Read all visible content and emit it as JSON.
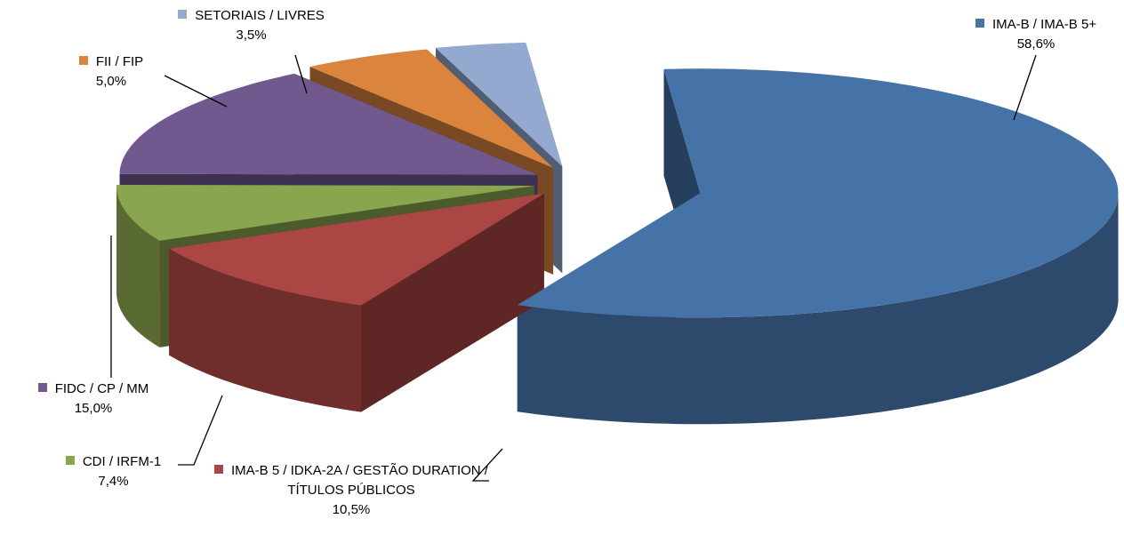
{
  "chart_data": {
    "type": "pie",
    "three_d": true,
    "categories": [
      "IMA-B / IMA-B 5+",
      "IMA-B 5 / IDKA-2A / GESTÃO DURATION / TÍTULOS PÚBLICOS",
      "CDI / IRFM-1",
      "FIDC / CP / MM",
      "FII / FIP",
      "SETORIAIS / LIVRES"
    ],
    "values": [
      58.6,
      10.5,
      7.4,
      15.0,
      5.0,
      3.5
    ],
    "value_labels": [
      "58,6%",
      "10,5%",
      "7,4%",
      "15,0%",
      "5,0%",
      "3,5%"
    ],
    "colors": [
      "#4572a7",
      "#aa4643",
      "#89a54e",
      "#71588f",
      "#db843d",
      "#93a9cf"
    ]
  }
}
